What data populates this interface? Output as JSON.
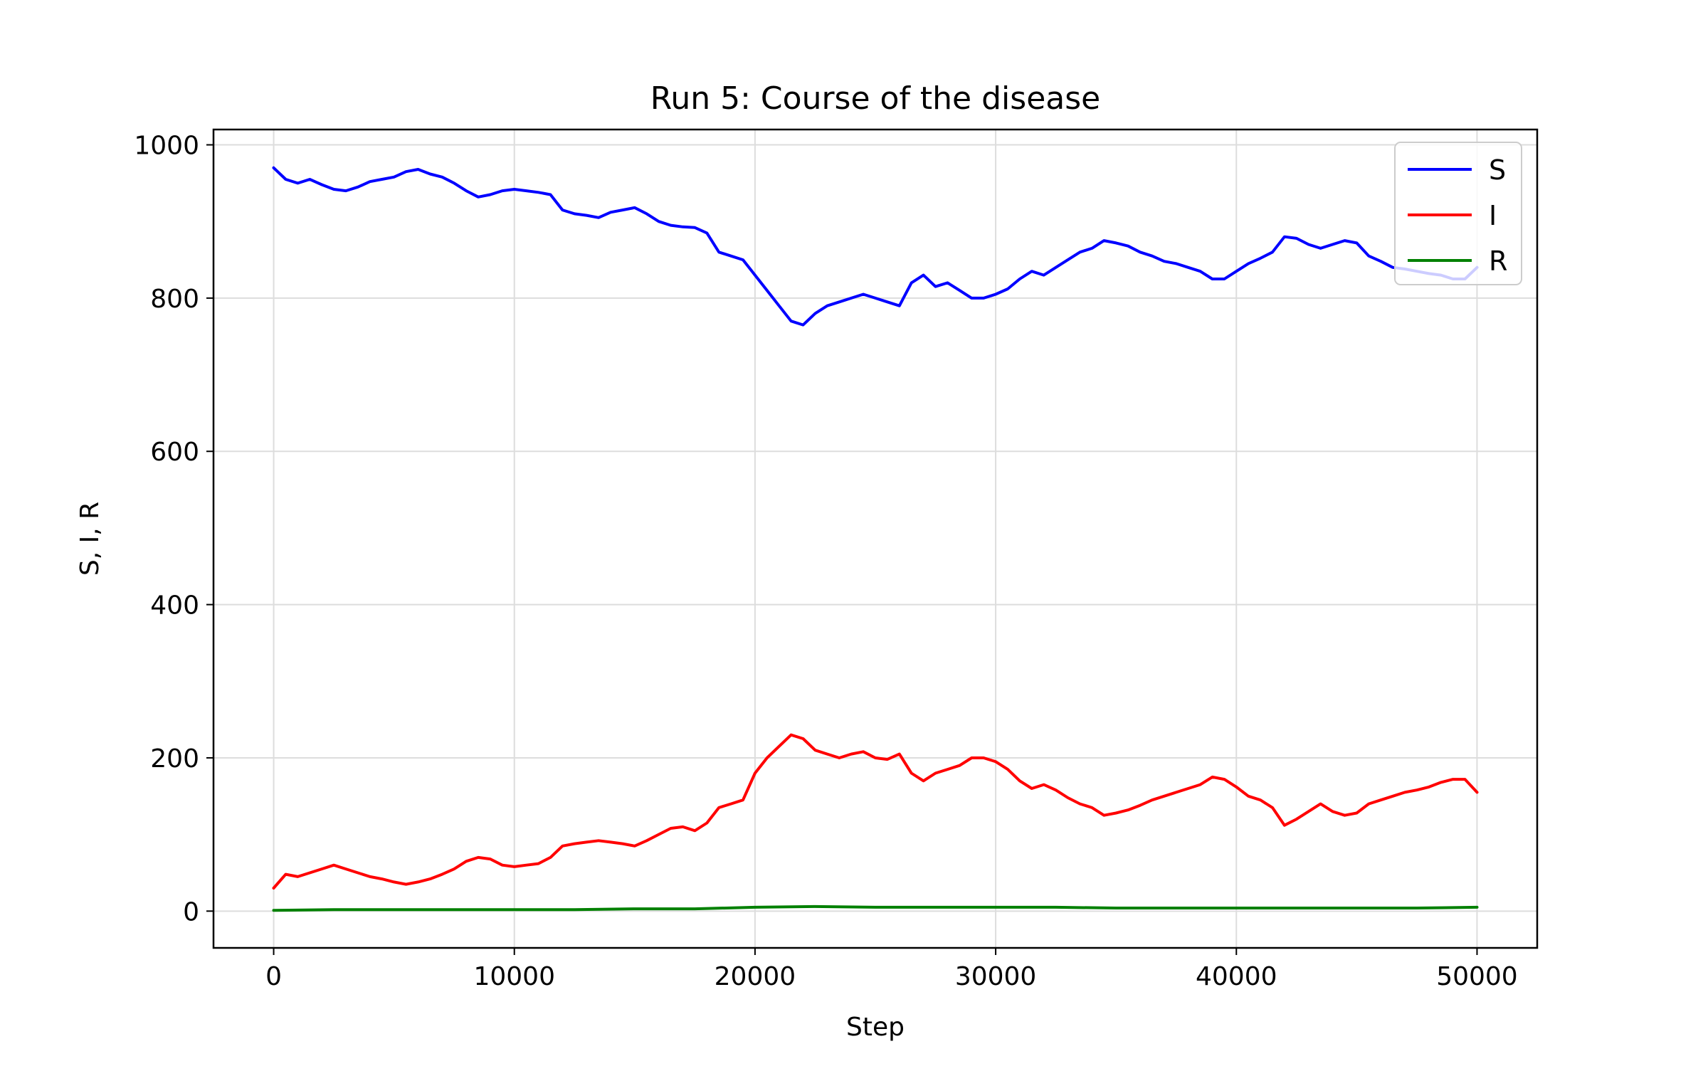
{
  "chart_data": {
    "type": "line",
    "title": "Run 5: Course of the disease",
    "xlabel": "Step",
    "ylabel": "S, I, R",
    "xlim": [
      -2500,
      52500
    ],
    "ylim": [
      -48,
      1020
    ],
    "x_ticks": [
      0,
      10000,
      20000,
      30000,
      40000,
      50000
    ],
    "y_ticks": [
      0,
      200,
      400,
      600,
      800,
      1000
    ],
    "grid": true,
    "legend_position": "top-right",
    "series": [
      {
        "name": "S",
        "color": "#0000ff",
        "x": [
          0,
          500,
          1000,
          1500,
          2000,
          2500,
          3000,
          3500,
          4000,
          4500,
          5000,
          5500,
          6000,
          6500,
          7000,
          7500,
          8000,
          8500,
          9000,
          9500,
          10000,
          10500,
          11000,
          11500,
          12000,
          12500,
          13000,
          13500,
          14000,
          14500,
          15000,
          15500,
          16000,
          16500,
          17000,
          17500,
          18000,
          18500,
          19000,
          19500,
          20000,
          20500,
          21000,
          21500,
          22000,
          22500,
          23000,
          23500,
          24000,
          24500,
          25000,
          25500,
          26000,
          26500,
          27000,
          27500,
          28000,
          28500,
          29000,
          29500,
          30000,
          30500,
          31000,
          31500,
          32000,
          32500,
          33000,
          33500,
          34000,
          34500,
          35000,
          35500,
          36000,
          36500,
          37000,
          37500,
          38000,
          38500,
          39000,
          39500,
          40000,
          40500,
          41000,
          41500,
          42000,
          42500,
          43000,
          43500,
          44000,
          44500,
          45000,
          45500,
          46000,
          46500,
          47000,
          47500,
          48000,
          48500,
          49000,
          49500,
          50000
        ],
        "values": [
          970,
          955,
          950,
          955,
          948,
          942,
          940,
          945,
          952,
          955,
          958,
          965,
          968,
          962,
          958,
          950,
          940,
          932,
          935,
          940,
          942,
          940,
          938,
          935,
          915,
          910,
          908,
          905,
          912,
          915,
          918,
          910,
          900,
          895,
          893,
          892,
          885,
          860,
          855,
          850,
          830,
          810,
          790,
          770,
          765,
          780,
          790,
          795,
          800,
          805,
          800,
          795,
          790,
          820,
          830,
          815,
          820,
          810,
          800,
          800,
          805,
          812,
          825,
          835,
          830,
          840,
          850,
          860,
          865,
          875,
          872,
          868,
          860,
          855,
          848,
          845,
          840,
          835,
          825,
          825,
          835,
          845,
          852,
          860,
          880,
          878,
          870,
          865,
          870,
          875,
          872,
          855,
          848,
          840,
          838,
          835,
          832,
          830,
          825,
          825,
          840
        ]
      },
      {
        "name": "I",
        "color": "#ff0000",
        "x": [
          0,
          500,
          1000,
          1500,
          2000,
          2500,
          3000,
          3500,
          4000,
          4500,
          5000,
          5500,
          6000,
          6500,
          7000,
          7500,
          8000,
          8500,
          9000,
          9500,
          10000,
          10500,
          11000,
          11500,
          12000,
          12500,
          13000,
          13500,
          14000,
          14500,
          15000,
          15500,
          16000,
          16500,
          17000,
          17500,
          18000,
          18500,
          19000,
          19500,
          20000,
          20500,
          21000,
          21500,
          22000,
          22500,
          23000,
          23500,
          24000,
          24500,
          25000,
          25500,
          26000,
          26500,
          27000,
          27500,
          28000,
          28500,
          29000,
          29500,
          30000,
          30500,
          31000,
          31500,
          32000,
          32500,
          33000,
          33500,
          34000,
          34500,
          35000,
          35500,
          36000,
          36500,
          37000,
          37500,
          38000,
          38500,
          39000,
          39500,
          40000,
          40500,
          41000,
          41500,
          42000,
          42500,
          43000,
          43500,
          44000,
          44500,
          45000,
          45500,
          46000,
          46500,
          47000,
          47500,
          48000,
          48500,
          49000,
          49500,
          50000
        ],
        "values": [
          30,
          48,
          45,
          50,
          55,
          60,
          55,
          50,
          45,
          42,
          38,
          35,
          38,
          42,
          48,
          55,
          65,
          70,
          68,
          60,
          58,
          60,
          62,
          70,
          85,
          88,
          90,
          92,
          90,
          88,
          85,
          92,
          100,
          108,
          110,
          105,
          115,
          135,
          140,
          145,
          180,
          200,
          215,
          230,
          225,
          210,
          205,
          200,
          205,
          208,
          200,
          198,
          205,
          180,
          170,
          180,
          185,
          190,
          200,
          200,
          195,
          185,
          170,
          160,
          165,
          158,
          148,
          140,
          135,
          125,
          128,
          132,
          138,
          145,
          150,
          155,
          160,
          165,
          175,
          172,
          162,
          150,
          145,
          135,
          112,
          120,
          130,
          140,
          130,
          125,
          128,
          140,
          145,
          150,
          155,
          158,
          162,
          168,
          172,
          172,
          155
        ]
      },
      {
        "name": "R",
        "color": "#008000",
        "x": [
          0,
          2500,
          5000,
          7500,
          10000,
          12500,
          15000,
          17500,
          20000,
          22500,
          25000,
          27500,
          30000,
          32500,
          35000,
          37500,
          40000,
          42500,
          45000,
          47500,
          50000
        ],
        "values": [
          1,
          2,
          2,
          2,
          2,
          2,
          3,
          3,
          5,
          6,
          5,
          5,
          5,
          5,
          4,
          4,
          4,
          4,
          4,
          4,
          5
        ]
      }
    ]
  }
}
